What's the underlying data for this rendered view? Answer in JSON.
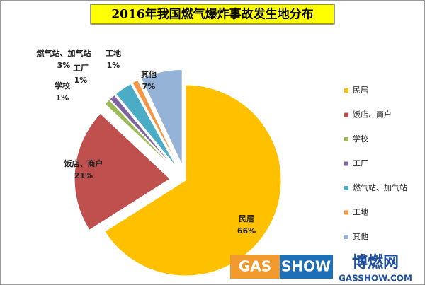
{
  "chart_data": {
    "type": "pie",
    "title": "2016年我国燃气爆炸事故发生地分布",
    "categories": [
      "民居",
      "饭店、商户",
      "学校",
      "工厂",
      "燃气站、加气站",
      "工地",
      "其他"
    ],
    "values": [
      66,
      21,
      1,
      1,
      3,
      1,
      7
    ],
    "value_labels": [
      "66%",
      "21%",
      "1%",
      "1%",
      "3%",
      "1%",
      "7%"
    ],
    "colors": [
      "#FFC000",
      "#C0504D",
      "#9BBB59",
      "#8064A2",
      "#4BACC6",
      "#F79646",
      "#95B3D7"
    ],
    "legend": "right"
  },
  "watermark": {
    "brand": "GAS",
    "brand2": "SHOW",
    "site": "博燃网",
    "url": "GASSHOW.COM"
  }
}
